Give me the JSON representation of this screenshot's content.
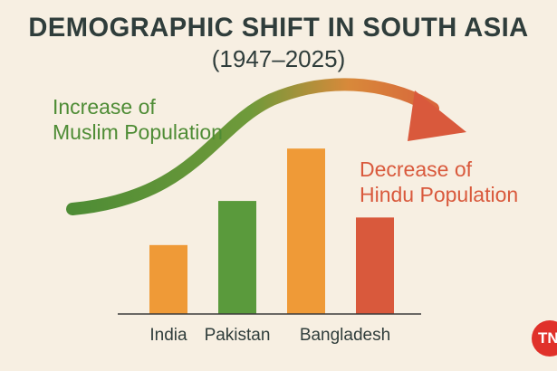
{
  "title": "DEMOGRAPHIC SHIFT IN SOUTH ASIA",
  "subtitle": "(1947–2025)",
  "annotations": {
    "increase": "Increase of\nMuslim Population",
    "decrease": "Decrease of\nHindu Population"
  },
  "badge": "TN",
  "colors": {
    "background": "#f7efe2",
    "title": "#2f3d3b",
    "orange": "#ef9a37",
    "green": "#5a9a3c",
    "red": "#d9593c",
    "axis": "#3b3b3b"
  },
  "chart_data": {
    "type": "bar",
    "title": "DEMOGRAPHIC SHIFT IN SOUTH ASIA",
    "subtitle": "(1947–2025)",
    "categories": [
      "India",
      "Pakistan",
      "Bangladesh",
      ""
    ],
    "values": [
      2.5,
      4.1,
      6.0,
      3.5
    ],
    "bar_colors": [
      "#ef9a37",
      "#5a9a3c",
      "#ef9a37",
      "#d9593c"
    ],
    "ylim": [
      0,
      6.4
    ],
    "grid": false,
    "legend": "none",
    "trend_arrow": "rising green-to-red curve from left to right"
  }
}
